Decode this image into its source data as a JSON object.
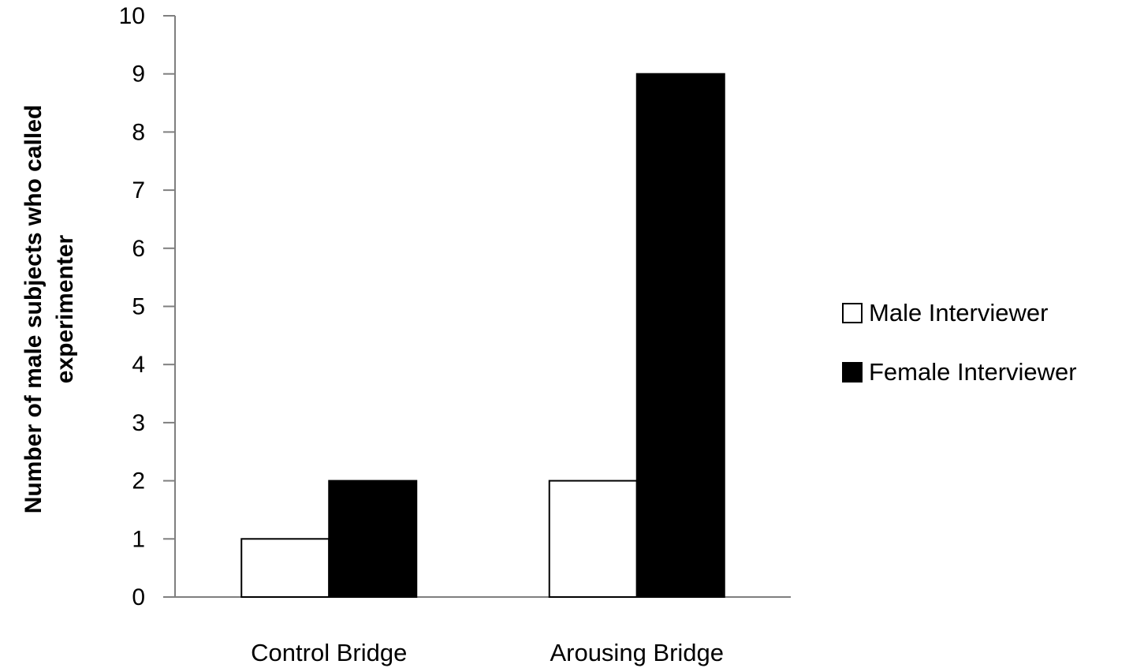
{
  "chart_data": {
    "type": "bar",
    "title": "",
    "xlabel": "",
    "ylabel_lines": [
      "Number of male subjects  who called",
      "experimenter"
    ],
    "categories": [
      "Control Bridge",
      "Arousing Bridge"
    ],
    "series": [
      {
        "name": "Male Interviewer",
        "values": [
          1,
          2
        ],
        "color": "#ffffff"
      },
      {
        "name": "Female Interviewer",
        "values": [
          2,
          9
        ],
        "color": "#000000"
      }
    ],
    "ylim": [
      0,
      10
    ],
    "yticks": [
      0,
      1,
      2,
      3,
      4,
      5,
      6,
      7,
      8,
      9,
      10
    ],
    "grid": false,
    "legend_position": "right"
  }
}
